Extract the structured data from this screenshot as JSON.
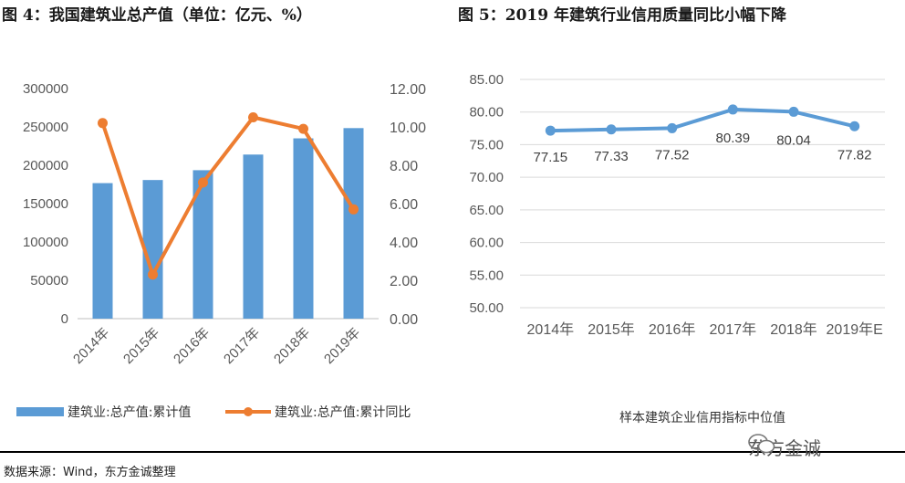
{
  "figure1": {
    "title": "图 4：我国建筑业总产值（单位：亿元、%）"
  },
  "figure2": {
    "title": "图 5：2019 年建筑行业信用质量同比小幅下降"
  },
  "source": "数据来源：Wind，东方金诚整理",
  "watermark": "东方金诚",
  "colors": {
    "bar": "#5b9bd5",
    "line_orange": "#ed7d31",
    "line_blue": "#5b9bd5",
    "grid": "#d9d9d9",
    "text": "#595959"
  },
  "chart_data": [
    {
      "type": "bar",
      "categories": [
        "2014年",
        "2015年",
        "2016年",
        "2017年",
        "2018年",
        "2019年"
      ],
      "series": [
        {
          "name": "建筑业:总产值:累计值",
          "type": "bar",
          "axis": "left",
          "values": [
            176713,
            180757,
            193567,
            213954,
            235086,
            248446
          ]
        },
        {
          "name": "建筑业:总产值:累计同比",
          "type": "line",
          "axis": "right",
          "values": [
            10.2,
            2.3,
            7.1,
            10.5,
            9.9,
            5.7
          ]
        }
      ],
      "ylim_left": [
        0,
        300000
      ],
      "yticks_left": [
        "0",
        "50000",
        "100000",
        "150000",
        "200000",
        "250000",
        "300000"
      ],
      "ylim_right": [
        0,
        12
      ],
      "yticks_right": [
        "0.00",
        "2.00",
        "4.00",
        "6.00",
        "8.00",
        "10.00",
        "12.00"
      ],
      "legend_position": "bottom",
      "grid": false
    },
    {
      "type": "line",
      "categories": [
        "2014年",
        "2015年",
        "2016年",
        "2017年",
        "2018年",
        "2019年E"
      ],
      "series": [
        {
          "name": "样本建筑企业信用指标中位值",
          "values": [
            77.15,
            77.33,
            77.52,
            80.39,
            80.04,
            77.82
          ],
          "labels": [
            "77.15",
            "77.33",
            "77.52",
            "80.39",
            "80.04",
            "77.82"
          ]
        }
      ],
      "ylim": [
        50,
        85
      ],
      "yticks": [
        "50.00",
        "55.00",
        "60.00",
        "65.00",
        "70.00",
        "75.00",
        "80.00",
        "85.00"
      ],
      "xlabel": "样本建筑企业信用指标中位值",
      "grid": true
    }
  ]
}
